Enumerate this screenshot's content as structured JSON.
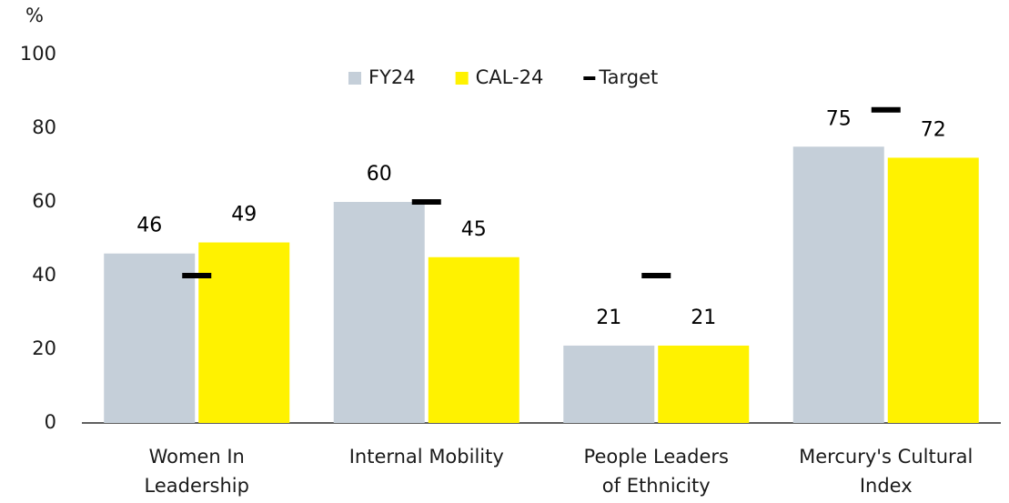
{
  "chart_data": {
    "type": "bar",
    "y_label": "%",
    "categories": [
      [
        "Women In",
        "Leadership"
      ],
      [
        "Internal Mobility"
      ],
      [
        "People Leaders",
        "of Ethnicity"
      ],
      [
        "Mercury's Cultural",
        "Index"
      ]
    ],
    "series": [
      {
        "name": "FY24",
        "color": "#c5cfd9",
        "style": "bar",
        "values": [
          46,
          60,
          21,
          75
        ]
      },
      {
        "name": "CAL-24",
        "color": "#fff200",
        "style": "bar",
        "values": [
          49,
          45,
          21,
          72
        ]
      },
      {
        "name": "Target",
        "color": "#000000",
        "style": "dash",
        "values": [
          40,
          60,
          40,
          85
        ]
      }
    ],
    "ylim": [
      0,
      100
    ],
    "yticks": [
      0,
      20,
      40,
      60,
      80,
      100
    ],
    "grid": false,
    "legend": "top"
  }
}
